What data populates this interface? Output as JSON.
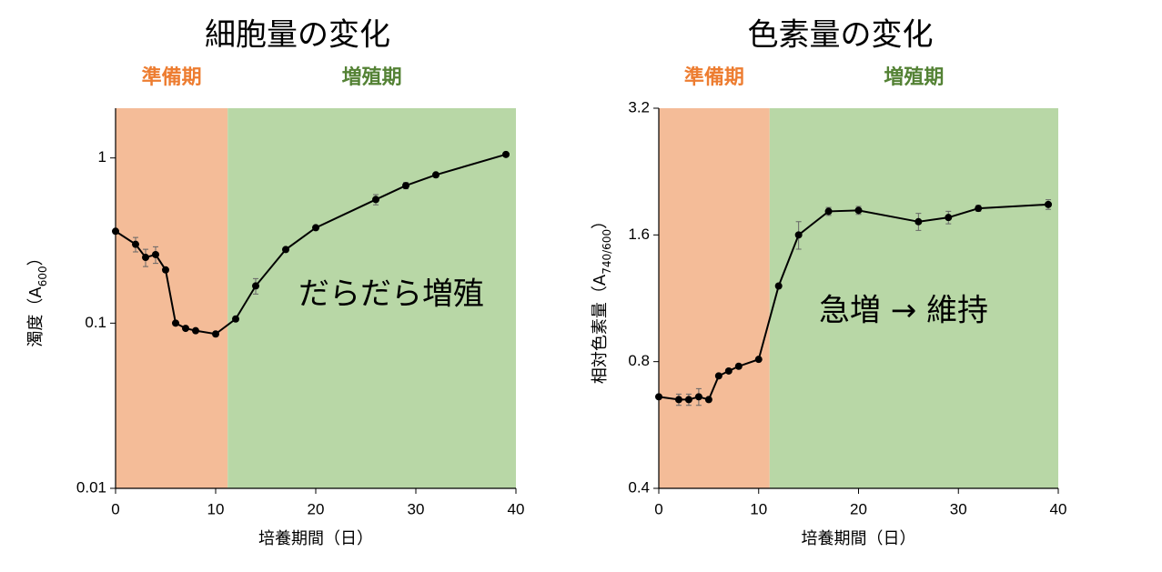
{
  "chart_data": [
    {
      "type": "line",
      "title": "細胞量の変化",
      "xlabel": "培養期間（日）",
      "ylabel": [
        "濁度（A",
        "600",
        "）"
      ],
      "yscale": "log",
      "xlim": [
        0,
        40
      ],
      "ylim": [
        0.01,
        2
      ],
      "xticks": [
        0,
        10,
        20,
        30,
        40
      ],
      "yticks": [
        0.01,
        0.1,
        1
      ],
      "regions": [
        {
          "label": "準備期",
          "start": 0,
          "end": 11.2,
          "color": "#f4bc98",
          "label_color": "#ed7d31"
        },
        {
          "label": "増殖期",
          "start": 11.2,
          "end": 40,
          "color": "#b8d7a6",
          "label_color": "#548235"
        }
      ],
      "annotation": "だらだら増殖",
      "x": [
        0,
        2,
        3,
        4,
        5,
        6,
        7,
        8,
        10,
        12,
        14,
        17,
        20,
        26,
        29,
        32,
        39
      ],
      "values": [
        0.36,
        0.3,
        0.25,
        0.26,
        0.21,
        0.1,
        0.093,
        0.09,
        0.086,
        0.106,
        0.168,
        0.279,
        0.378,
        0.56,
        0.68,
        0.79,
        1.05
      ],
      "errors": [
        null,
        0.03,
        0.03,
        0.03,
        null,
        null,
        null,
        null,
        null,
        null,
        0.018,
        null,
        null,
        0.04,
        0.03,
        null,
        null
      ],
      "color": "#000000"
    },
    {
      "type": "line",
      "title": "色素量の変化",
      "xlabel": "培養期間（日）",
      "ylabel": [
        "相対色素量（A",
        "740/600",
        "）"
      ],
      "yscale": "log",
      "xlim": [
        0,
        40
      ],
      "ylim": [
        0.4,
        3.2
      ],
      "xticks": [
        0,
        10,
        20,
        30,
        40
      ],
      "yticks": [
        0.4,
        0.8,
        1.6,
        3.2
      ],
      "regions": [
        {
          "label": "準備期",
          "start": 0,
          "end": 11.1,
          "color": "#f4bc98",
          "label_color": "#ed7d31"
        },
        {
          "label": "増殖期",
          "start": 11.1,
          "end": 40,
          "color": "#b8d7a6",
          "label_color": "#548235"
        }
      ],
      "annotation": "急増 → 維持",
      "x": [
        0,
        2,
        3,
        4,
        5,
        6,
        7,
        8,
        10,
        12,
        14,
        17,
        20,
        26,
        29,
        32,
        39
      ],
      "values": [
        0.66,
        0.65,
        0.65,
        0.66,
        0.65,
        0.74,
        0.76,
        0.78,
        0.81,
        1.21,
        1.6,
        1.82,
        1.83,
        1.72,
        1.76,
        1.85,
        1.89
      ],
      "errors": [
        null,
        0.02,
        0.02,
        0.03,
        null,
        null,
        null,
        null,
        null,
        null,
        0.12,
        0.04,
        0.04,
        0.08,
        0.06,
        0.03,
        0.05
      ],
      "color": "#000000"
    }
  ]
}
